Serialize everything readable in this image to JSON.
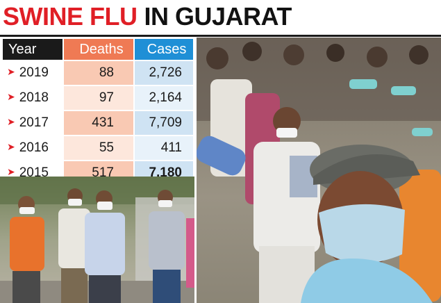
{
  "headline": {
    "part1": "SWINE FLU",
    "part2": "IN GUJARAT"
  },
  "table": {
    "headers": {
      "year": "Year",
      "deaths": "Deaths",
      "cases": "Cases"
    },
    "rows": [
      {
        "year": "2019",
        "deaths": "88",
        "cases": "2,726"
      },
      {
        "year": "2018",
        "deaths": "97",
        "cases": "2,164"
      },
      {
        "year": "2017",
        "deaths": "431",
        "cases": "7,709"
      },
      {
        "year": "2016",
        "deaths": "55",
        "cases": "411"
      },
      {
        "year": "2015",
        "deaths": "517",
        "cases": "7,180"
      }
    ],
    "arrow_icon": "➤"
  },
  "colors": {
    "headline_red": "#e01f26",
    "deaths_header": "#ef7a54",
    "cases_header": "#1f8fd6"
  },
  "photos": [
    {
      "name": "people-wearing-masks-street-photo"
    },
    {
      "name": "crowd-wearing-masks-photo"
    }
  ]
}
